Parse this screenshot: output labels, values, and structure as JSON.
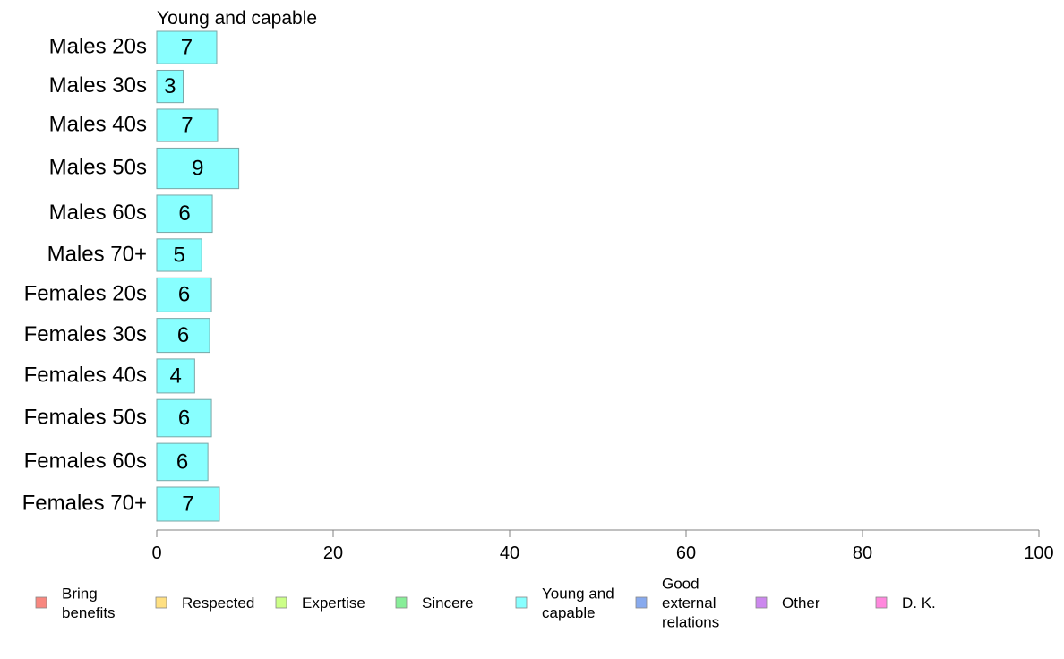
{
  "chart_data": {
    "type": "bar",
    "orientation": "horizontal",
    "title": "Young and capable",
    "categories": [
      "Males 20s",
      "Males 30s",
      "Males 40s",
      "Males 50s",
      "Males 60s",
      "Males 70+",
      "Females 20s",
      "Females 30s",
      "Females 40s",
      "Females 50s",
      "Females 60s",
      "Females 70+"
    ],
    "values": [
      7,
      3,
      7,
      9,
      6,
      5,
      6,
      6,
      4,
      6,
      6,
      7
    ],
    "bar_values_precise": [
      6.8,
      3.0,
      6.9,
      9.3,
      6.3,
      5.1,
      6.2,
      6.0,
      4.3,
      6.2,
      5.8,
      7.1
    ],
    "bar_relative_thickness": [
      1.0,
      1.0,
      1.0,
      1.25,
      1.15,
      1.0,
      1.05,
      1.05,
      1.05,
      1.15,
      1.15,
      1.05
    ],
    "series_color": "#88FFFF",
    "xlim": [
      0,
      100
    ],
    "xticks": [
      0,
      20,
      40,
      60,
      80,
      100
    ],
    "grid": false,
    "legend_position": "bottom",
    "legend": [
      {
        "label": "Bring\nbenefits",
        "color": "#F8877F"
      },
      {
        "label": "Respected",
        "color": "#FFE082"
      },
      {
        "label": "Expertise",
        "color": "#CCFF88"
      },
      {
        "label": "Sincere",
        "color": "#88EE99"
      },
      {
        "label": "Young and\ncapable",
        "color": "#88FFFF"
      },
      {
        "label": "Good\nexternal\nrelations",
        "color": "#88AAEE"
      },
      {
        "label": "Other",
        "color": "#CC88EE"
      },
      {
        "label": "D. K.",
        "color": "#FF88DD"
      }
    ]
  }
}
